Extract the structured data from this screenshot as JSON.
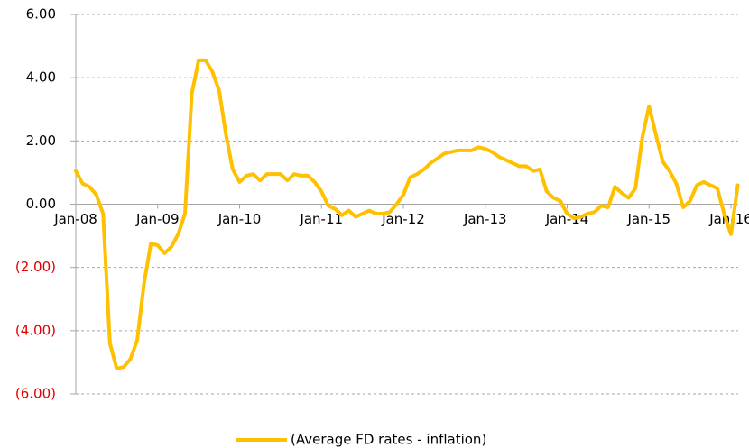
{
  "chart_data": {
    "type": "line",
    "categories": [
      "Jan-08",
      null,
      null,
      null,
      null,
      null,
      null,
      null,
      null,
      null,
      null,
      null,
      "Jan-09",
      null,
      null,
      null,
      null,
      null,
      null,
      null,
      null,
      null,
      null,
      null,
      "Jan-10",
      null,
      null,
      null,
      null,
      null,
      null,
      null,
      null,
      null,
      null,
      null,
      "Jan-11",
      null,
      null,
      null,
      null,
      null,
      null,
      null,
      null,
      null,
      null,
      null,
      "Jan-12",
      null,
      null,
      null,
      null,
      null,
      null,
      null,
      null,
      null,
      null,
      null,
      "Jan-13",
      null,
      null,
      null,
      null,
      null,
      null,
      null,
      null,
      null,
      null,
      null,
      "Jan-14",
      null,
      null,
      null,
      null,
      null,
      null,
      null,
      null,
      null,
      null,
      null,
      "Jan-15",
      null,
      null,
      null,
      null,
      null,
      null,
      null,
      null,
      null,
      null,
      null,
      "Jan-16",
      null
    ],
    "series": [
      {
        "name": "(Average FD rates - inflation)",
        "color": "#ffc000",
        "values": [
          1.05,
          0.65,
          0.55,
          0.3,
          -0.3,
          -4.4,
          -5.2,
          -5.15,
          -4.9,
          -4.3,
          -2.5,
          -1.25,
          -1.3,
          -1.55,
          -1.35,
          -0.95,
          -0.3,
          3.5,
          4.55,
          4.55,
          4.2,
          3.6,
          2.2,
          1.1,
          0.7,
          0.9,
          0.95,
          0.75,
          0.95,
          0.95,
          0.95,
          0.75,
          0.95,
          0.9,
          0.9,
          0.7,
          0.4,
          -0.05,
          -0.15,
          -0.35,
          -0.2,
          -0.4,
          -0.3,
          -0.2,
          -0.3,
          -0.3,
          -0.25,
          0.0,
          0.3,
          0.85,
          0.95,
          1.1,
          1.3,
          1.45,
          1.6,
          1.65,
          1.7,
          1.7,
          1.7,
          1.8,
          1.75,
          1.65,
          1.5,
          1.4,
          1.3,
          1.2,
          1.2,
          1.05,
          1.1,
          0.4,
          0.2,
          0.1,
          -0.3,
          -0.45,
          -0.4,
          -0.3,
          -0.25,
          -0.05,
          -0.1,
          0.55,
          0.35,
          0.2,
          0.5,
          2.1,
          3.1,
          2.2,
          1.35,
          1.05,
          0.65,
          -0.1,
          0.1,
          0.6,
          0.7,
          0.6,
          0.5,
          -0.3,
          -0.95,
          0.6
        ]
      }
    ],
    "ylim": [
      -6,
      6
    ],
    "yticks": [
      {
        "value": 6,
        "label": "6.00"
      },
      {
        "value": 4,
        "label": "4.00"
      },
      {
        "value": 2,
        "label": "2.00"
      },
      {
        "value": 0,
        "label": "0.00"
      },
      {
        "value": -2,
        "label": "(2.00)"
      },
      {
        "value": -4,
        "label": "(4.00)"
      },
      {
        "value": -6,
        "label": "(6.00)"
      }
    ],
    "negative_label_color": "#e00000",
    "grid": true,
    "legend": "bottom"
  }
}
